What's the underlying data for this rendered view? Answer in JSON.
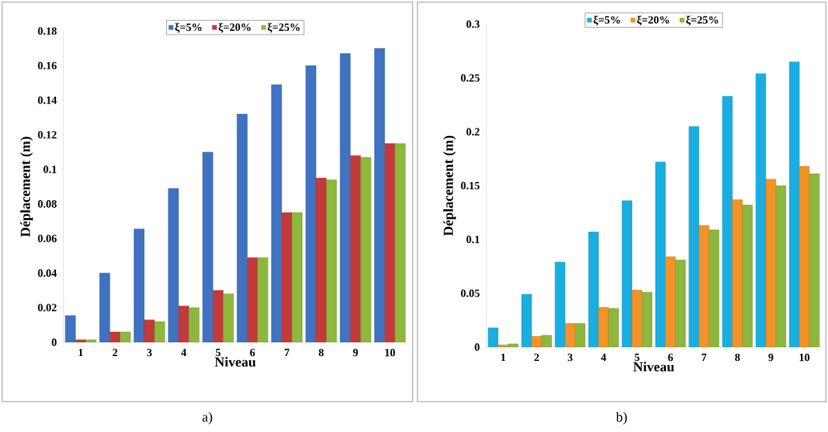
{
  "chart_data": [
    {
      "type": "bar",
      "xlabel": "Niveau",
      "ylabel": "Déplacement (m)",
      "categories": [
        "1",
        "2",
        "3",
        "4",
        "5",
        "6",
        "7",
        "8",
        "9",
        "10"
      ],
      "ylim": [
        0,
        0.18
      ],
      "yticks": [
        0,
        0.02,
        0.04,
        0.06,
        0.08,
        0.1,
        0.12,
        0.14,
        0.16,
        0.18
      ],
      "legend": "top",
      "annotations": [
        "a)"
      ],
      "series": [
        {
          "name": "ξ=5%",
          "color": "#3f72c0",
          "values": [
            0.0155,
            0.04,
            0.0655,
            0.089,
            0.11,
            0.132,
            0.149,
            0.16,
            0.167,
            0.17
          ]
        },
        {
          "name": "ξ=20%",
          "color": "#c33a3a",
          "values": [
            0.0015,
            0.006,
            0.013,
            0.021,
            0.03,
            0.049,
            0.075,
            0.095,
            0.108,
            0.115
          ]
        },
        {
          "name": "ξ=25%",
          "color": "#8db83c",
          "values": [
            0.0015,
            0.006,
            0.012,
            0.02,
            0.028,
            0.049,
            0.075,
            0.094,
            0.107,
            0.115
          ]
        }
      ]
    },
    {
      "type": "bar",
      "xlabel": "Niveau",
      "ylabel": "Déplacement (m)",
      "categories": [
        "1",
        "2",
        "3",
        "4",
        "5",
        "6",
        "7",
        "8",
        "9",
        "10"
      ],
      "ylim": [
        0,
        0.3
      ],
      "yticks": [
        0,
        0.05,
        0.1,
        0.15,
        0.2,
        0.25,
        0.3
      ],
      "legend": "top",
      "annotations": [
        "b)"
      ],
      "series": [
        {
          "name": "ξ=5%",
          "color": "#1aaee0",
          "values": [
            0.018,
            0.049,
            0.079,
            0.107,
            0.136,
            0.172,
            0.205,
            0.233,
            0.254,
            0.265
          ]
        },
        {
          "name": "ξ=20%",
          "color": "#f39226",
          "values": [
            0.002,
            0.01,
            0.022,
            0.037,
            0.053,
            0.084,
            0.113,
            0.137,
            0.156,
            0.168
          ]
        },
        {
          "name": "ξ=25%",
          "color": "#8db63c",
          "values": [
            0.003,
            0.011,
            0.022,
            0.036,
            0.051,
            0.081,
            0.109,
            0.132,
            0.15,
            0.161
          ]
        }
      ]
    }
  ]
}
